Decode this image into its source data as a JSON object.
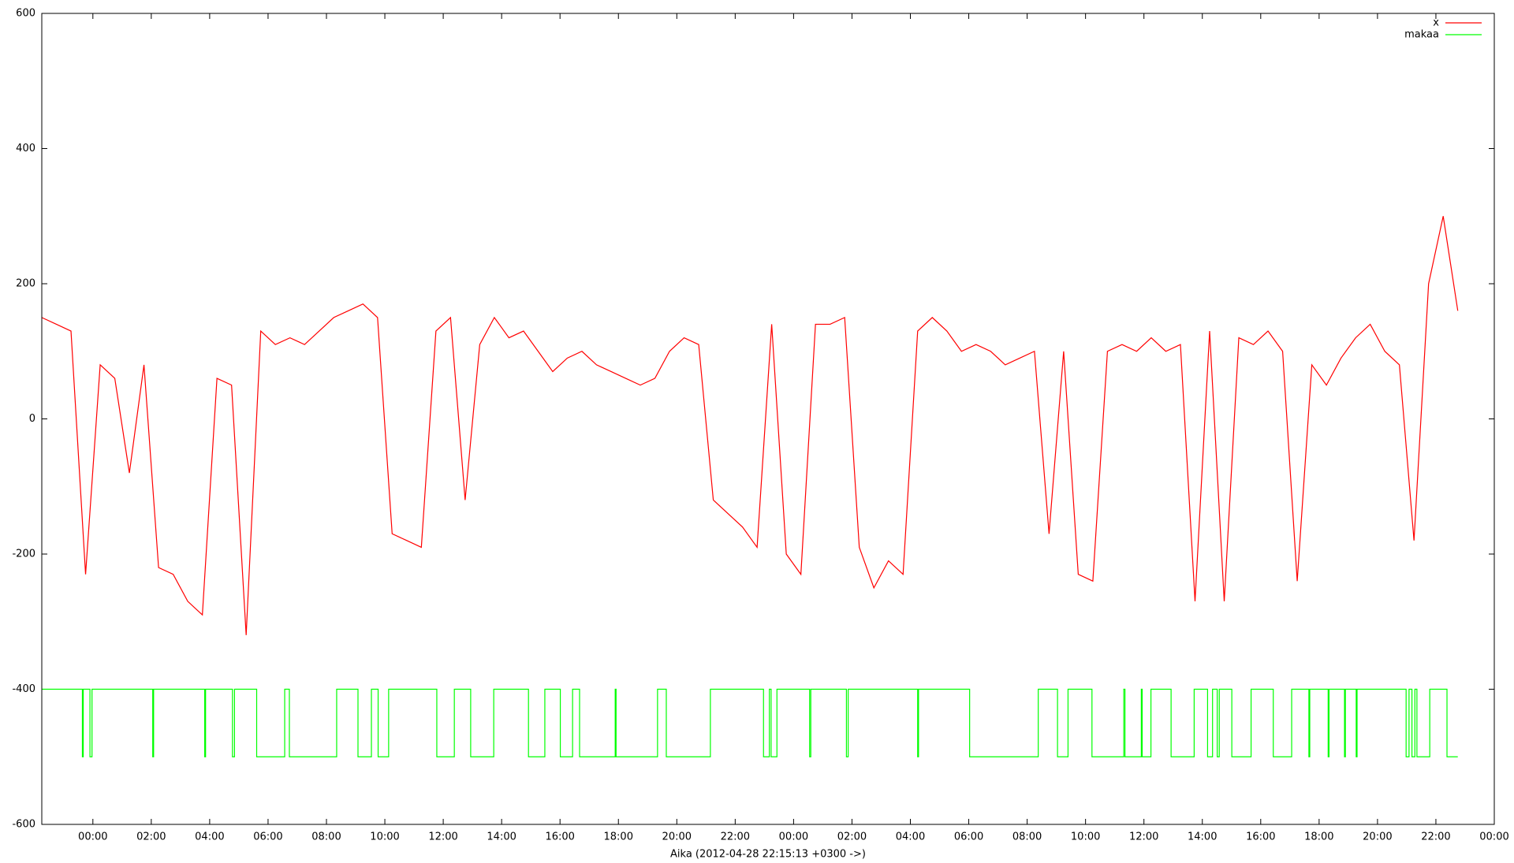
{
  "chart_data": {
    "type": "line",
    "xlabel": "Aika (2012-04-28 22:15:13 +0300 ->)",
    "xlim": [
      0,
      49.75
    ],
    "ylim": [
      -600,
      600
    ],
    "yticks": [
      -600,
      -400,
      -200,
      0,
      200,
      400,
      600
    ],
    "xticks": [
      {
        "value": 1.75,
        "label": "00:00"
      },
      {
        "value": 3.75,
        "label": "02:00"
      },
      {
        "value": 5.75,
        "label": "04:00"
      },
      {
        "value": 7.75,
        "label": "06:00"
      },
      {
        "value": 9.75,
        "label": "08:00"
      },
      {
        "value": 11.75,
        "label": "10:00"
      },
      {
        "value": 13.75,
        "label": "12:00"
      },
      {
        "value": 15.75,
        "label": "14:00"
      },
      {
        "value": 17.75,
        "label": "16:00"
      },
      {
        "value": 19.75,
        "label": "18:00"
      },
      {
        "value": 21.75,
        "label": "20:00"
      },
      {
        "value": 23.75,
        "label": "22:00"
      },
      {
        "value": 25.75,
        "label": "00:00"
      },
      {
        "value": 27.75,
        "label": "02:00"
      },
      {
        "value": 29.75,
        "label": "04:00"
      },
      {
        "value": 31.75,
        "label": "06:00"
      },
      {
        "value": 33.75,
        "label": "08:00"
      },
      {
        "value": 35.75,
        "label": "10:00"
      },
      {
        "value": 37.75,
        "label": "12:00"
      },
      {
        "value": 39.75,
        "label": "14:00"
      },
      {
        "value": 41.75,
        "label": "16:00"
      },
      {
        "value": 43.75,
        "label": "18:00"
      },
      {
        "value": 45.75,
        "label": "20:00"
      },
      {
        "value": 47.75,
        "label": "22:00"
      },
      {
        "value": 49.75,
        "label": "00:00"
      }
    ],
    "grid": false,
    "legend": "top-right",
    "series": [
      {
        "name": "x",
        "color": "#ff0000",
        "style": "lines",
        "x": [
          0,
          0.5,
          1,
          1.5,
          2,
          2.5,
          3,
          3.5,
          4,
          4.5,
          5,
          5.5,
          6,
          6.5,
          7,
          7.5,
          8,
          8.5,
          9,
          9.5,
          10,
          10.5,
          11,
          11.5,
          12,
          12.5,
          13,
          13.5,
          14,
          14.5,
          15,
          15.5,
          16,
          16.5,
          17,
          17.5,
          18,
          18.5,
          19,
          19.5,
          20,
          20.5,
          21,
          21.5,
          22,
          22.5,
          23,
          23.5,
          24,
          24.5,
          25,
          25.5,
          26,
          26.5,
          27,
          27.5,
          28,
          28.5,
          29,
          29.5,
          30,
          30.5,
          31,
          31.5,
          32,
          32.5,
          33,
          33.5,
          34,
          34.5,
          35,
          35.5,
          36,
          36.5,
          37,
          37.5,
          38,
          38.5,
          39,
          39.5,
          40,
          40.5,
          41,
          41.5,
          42,
          42.5,
          43,
          43.5,
          44,
          44.5,
          45,
          45.5,
          46,
          46.5,
          47,
          47.5,
          48,
          48.5
        ],
        "values": [
          150,
          140,
          130,
          -230,
          80,
          60,
          -80,
          80,
          -220,
          -230,
          -270,
          -290,
          60,
          50,
          -320,
          130,
          110,
          120,
          110,
          130,
          150,
          160,
          170,
          150,
          -170,
          -180,
          -190,
          130,
          150,
          -120,
          110,
          150,
          120,
          130,
          100,
          70,
          90,
          100,
          80,
          70,
          60,
          50,
          60,
          100,
          120,
          110,
          -120,
          -140,
          -160,
          -190,
          140,
          -200,
          -230,
          140,
          140,
          150,
          -190,
          -250,
          -210,
          -230,
          130,
          150,
          130,
          100,
          110,
          100,
          80,
          90,
          100,
          -170,
          100,
          -230,
          -240,
          100,
          110,
          100,
          120,
          100,
          110,
          -270,
          130,
          -270,
          120,
          110,
          130,
          100,
          -240,
          80,
          50,
          90,
          120,
          140,
          100,
          80,
          -180,
          200,
          300,
          160
        ]
      },
      {
        "name": "makaa",
        "color": "#00ff00",
        "style": "steps",
        "x": [
          0,
          1.39,
          1.42,
          1.65,
          1.72,
          3.8,
          3.83,
          5.58,
          5.61,
          6.53,
          6.6,
          7.36,
          8.32,
          8.48,
          10.1,
          10.83,
          11.29,
          11.52,
          11.88,
          13.53,
          14.13,
          14.69,
          15.48,
          16.67,
          17.23,
          17.76,
          18.18,
          18.42,
          19.64,
          19.67,
          21.09,
          21.39,
          22.9,
          24.72,
          24.92,
          24.98,
          25.18,
          26.3,
          26.34,
          27.56,
          27.62,
          30.0,
          30.03,
          31.78,
          34.13,
          34.79,
          35.15,
          35.97,
          37.06,
          37.1,
          37.66,
          37.69,
          37.99,
          38.68,
          39.47,
          39.93,
          40.1,
          40.26,
          40.33,
          40.76,
          41.42,
          42.18,
          42.81,
          43.4,
          43.43,
          44.06,
          44.09,
          44.62,
          44.65,
          45.02,
          45.05,
          46.73,
          46.83,
          46.93,
          47.03,
          47.1,
          47.54,
          48.13,
          48.5
        ],
        "values": [
          -400,
          -500,
          -400,
          -500,
          -400,
          -500,
          -400,
          -500,
          -400,
          -500,
          -400,
          -500,
          -400,
          -500,
          -400,
          -500,
          -400,
          -500,
          -400,
          -500,
          -400,
          -500,
          -400,
          -500,
          -400,
          -500,
          -400,
          -500,
          -400,
          -500,
          -400,
          -500,
          -400,
          -500,
          -400,
          -500,
          -400,
          -500,
          -400,
          -500,
          -400,
          -500,
          -400,
          -500,
          -400,
          -500,
          -400,
          -500,
          -400,
          -500,
          -400,
          -500,
          -400,
          -500,
          -400,
          -500,
          -400,
          -500,
          -400,
          -500,
          -400,
          -500,
          -400,
          -500,
          -400,
          -500,
          -400,
          -500,
          -400,
          -500,
          -400,
          -500,
          -400,
          -500,
          -400,
          -500,
          -400,
          -500,
          -500
        ]
      }
    ]
  }
}
